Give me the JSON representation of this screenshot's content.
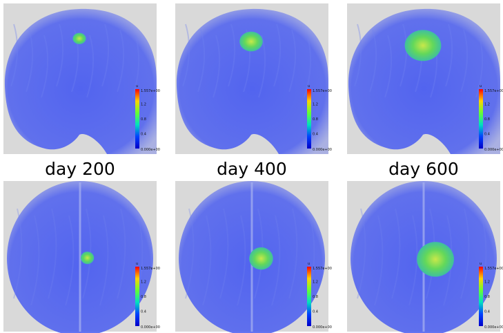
{
  "colorbar": {
    "title": "u",
    "max_label": "1.557e+00",
    "ticks": [
      "1.2",
      "0.8",
      "0.4"
    ],
    "min_label": "0.000e+00",
    "colors": [
      "#ff0000",
      "#ffd400",
      "#66ff33",
      "#00e0c0",
      "#0040ff",
      "#0000c8"
    ]
  },
  "labels": [
    "day 200",
    "day 400",
    "day 600"
  ],
  "colors": {
    "brain": "#4b5ef0",
    "background": "#d9d9d9",
    "tumor": "#63d85a"
  },
  "panels": [
    {
      "view": "coronal",
      "day": 200,
      "tumor_size": 0.08
    },
    {
      "view": "coronal",
      "day": 400,
      "tumor_size": 0.14
    },
    {
      "view": "coronal",
      "day": 600,
      "tumor_size": 0.22
    },
    {
      "view": "axial",
      "day": 200,
      "tumor_size": 0.1
    },
    {
      "view": "axial",
      "day": 400,
      "tumor_size": 0.18
    },
    {
      "view": "axial",
      "day": 600,
      "tumor_size": 0.28
    }
  ]
}
